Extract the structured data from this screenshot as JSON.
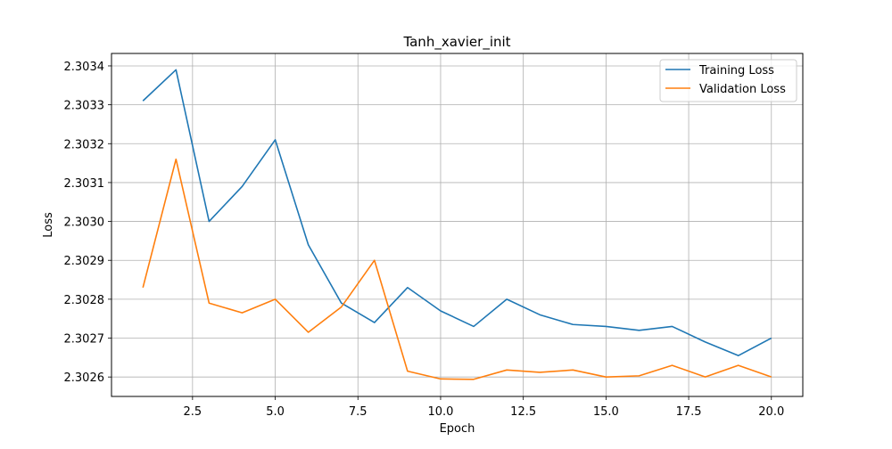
{
  "chart_data": {
    "type": "line",
    "title": "Tanh_xavier_init",
    "xlabel": "Epoch",
    "ylabel": "Loss",
    "x": [
      1,
      2,
      3,
      4,
      5,
      6,
      7,
      8,
      9,
      10,
      11,
      12,
      13,
      14,
      15,
      16,
      17,
      18,
      19,
      20
    ],
    "series": [
      {
        "name": "Training Loss",
        "color": "#1f77b4",
        "values": [
          2.30331,
          2.30339,
          2.303,
          2.30309,
          2.30321,
          2.30294,
          2.30279,
          2.30274,
          2.30283,
          2.30277,
          2.30273,
          2.3028,
          2.30276,
          2.302735,
          2.30273,
          2.30272,
          2.30273,
          2.30269,
          2.302655,
          2.3027
        ]
      },
      {
        "name": "Validation Loss",
        "color": "#ff7f0e",
        "values": [
          2.30283,
          2.30316,
          2.30279,
          2.302765,
          2.3028,
          2.302715,
          2.30278,
          2.3029,
          2.302615,
          2.302595,
          2.302594,
          2.302618,
          2.302612,
          2.302618,
          2.3026,
          2.302603,
          2.30263,
          2.3026,
          2.30263,
          2.3026
        ]
      }
    ],
    "xlim": [
      0.05,
      20.95
    ],
    "ylim": [
      2.30255,
      2.303432
    ],
    "xticks": [
      2.5,
      5.0,
      7.5,
      10.0,
      12.5,
      15.0,
      17.5,
      20.0
    ],
    "xtick_labels": [
      "2.5",
      "5.0",
      "7.5",
      "10.0",
      "12.5",
      "15.0",
      "17.5",
      "20.0"
    ],
    "yticks": [
      2.3026,
      2.3027,
      2.3028,
      2.3029,
      2.303,
      2.3031,
      2.3032,
      2.3033,
      2.3034
    ],
    "ytick_labels": [
      "2.3026",
      "2.3027",
      "2.3028",
      "2.3029",
      "2.3030",
      "2.3031",
      "2.3032",
      "2.3033",
      "2.3034"
    ],
    "grid": true,
    "legend_position": "top-right"
  }
}
